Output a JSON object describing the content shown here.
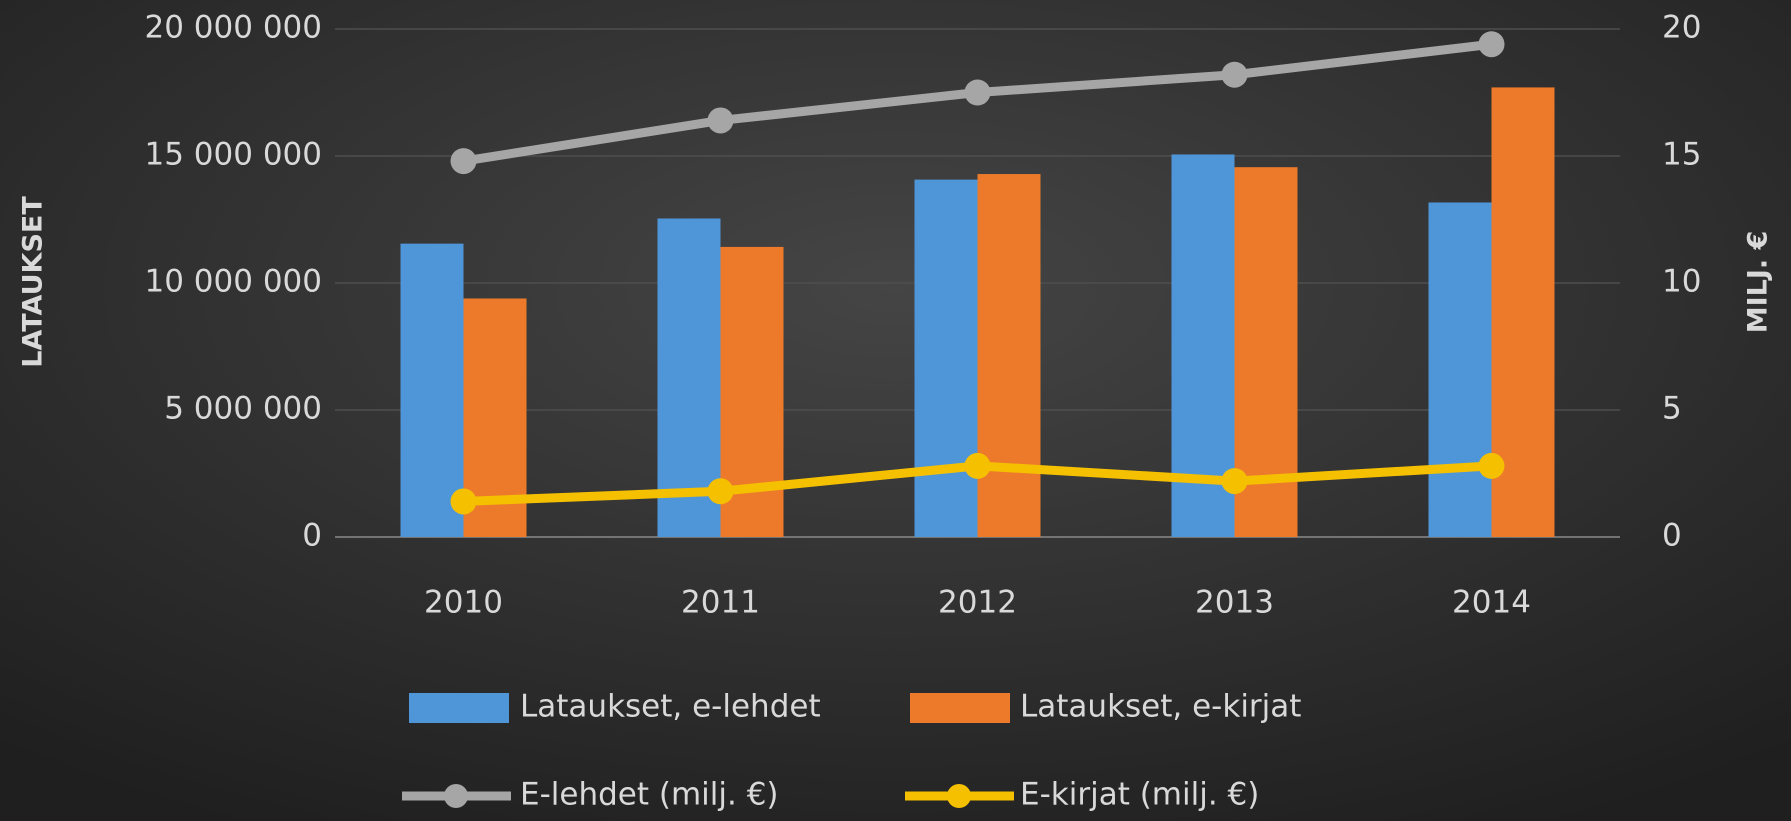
{
  "chart_data": {
    "type": "bar",
    "ylabel": "LATAUKSET",
    "y2label": "MILJ. €",
    "categories": [
      "2010",
      "2011",
      "2012",
      "2013",
      "2014"
    ],
    "series": [
      {
        "name": "Lataukset, e-lehdet",
        "color": "#4f96d9",
        "values": [
          11550000,
          12540000,
          14070000,
          15060000,
          13170000
        ]
      },
      {
        "name": "Lataukset, e-kirjat",
        "color": "#ec7a2a",
        "values": [
          9390000,
          11420000,
          14290000,
          14560000,
          17700000
        ]
      },
      {
        "name": "E-lehdet (milj. €)",
        "type": "line",
        "axis": "y2",
        "color": "#a6a6a6",
        "values": [
          14.8,
          16.4,
          17.5,
          18.2,
          19.4
        ]
      },
      {
        "name": "E-kirjat (milj. €)",
        "type": "line",
        "axis": "y2",
        "color": "#f5c000",
        "values": [
          1.4,
          1.8,
          2.8,
          2.2,
          2.8
        ]
      }
    ],
    "ylim": [
      0,
      20000000
    ],
    "yticks": [
      0,
      {
        "value": 5000000,
        "label": "5 000 000"
      },
      {
        "value": 10000000,
        "label": "10 000 000"
      },
      {
        "value": 15000000,
        "label": "15 000 000"
      },
      {
        "value": 20000000,
        "label": "20 000 000"
      }
    ],
    "y2lim": [
      0,
      20
    ],
    "y2ticks": [
      0,
      5,
      10,
      15,
      20
    ],
    "grid": true
  }
}
